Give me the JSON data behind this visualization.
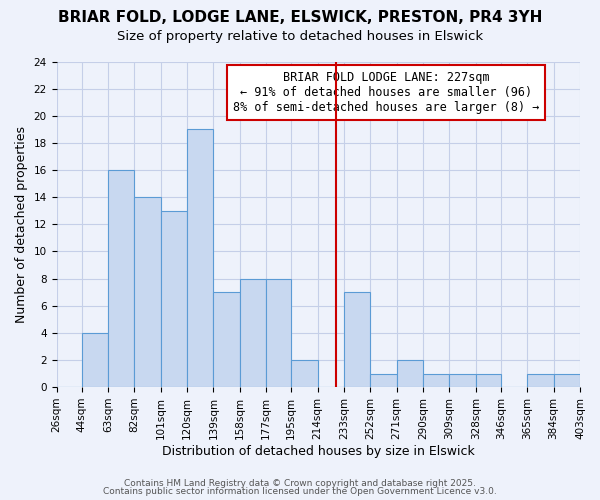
{
  "title": "BRIAR FOLD, LODGE LANE, ELSWICK, PRESTON, PR4 3YH",
  "subtitle": "Size of property relative to detached houses in Elswick",
  "xlabel": "Distribution of detached houses by size in Elswick",
  "ylabel": "Number of detached properties",
  "bin_edges": [
    26,
    44,
    63,
    82,
    101,
    120,
    139,
    158,
    177,
    195,
    214,
    233,
    252,
    271,
    290,
    309,
    328,
    346,
    365,
    384,
    403
  ],
  "counts": [
    0,
    4,
    16,
    14,
    13,
    19,
    7,
    8,
    8,
    2,
    0,
    7,
    1,
    2,
    1,
    1,
    1,
    0,
    1,
    1
  ],
  "bar_color": "#c8d8f0",
  "bar_edge_color": "#5b9bd5",
  "vline_x": 227,
  "vline_color": "#cc0000",
  "ylim": [
    0,
    24
  ],
  "yticks": [
    0,
    2,
    4,
    6,
    8,
    10,
    12,
    14,
    16,
    18,
    20,
    22,
    24
  ],
  "xtick_labels": [
    "26sqm",
    "44sqm",
    "63sqm",
    "82sqm",
    "101sqm",
    "120sqm",
    "139sqm",
    "158sqm",
    "177sqm",
    "195sqm",
    "214sqm",
    "233sqm",
    "252sqm",
    "271sqm",
    "290sqm",
    "309sqm",
    "328sqm",
    "346sqm",
    "365sqm",
    "384sqm",
    "403sqm"
  ],
  "annotation_title": "BRIAR FOLD LODGE LANE: 227sqm",
  "annotation_line1": "← 91% of detached houses are smaller (96)",
  "annotation_line2": "8% of semi-detached houses are larger (8) →",
  "footer1": "Contains HM Land Registry data © Crown copyright and database right 2025.",
  "footer2": "Contains public sector information licensed under the Open Government Licence v3.0.",
  "bg_color": "#eef2fb",
  "grid_color": "#c5cfe8",
  "title_fontsize": 11,
  "subtitle_fontsize": 9.5,
  "axis_label_fontsize": 9,
  "tick_fontsize": 7.5,
  "annotation_fontsize": 8.5,
  "footer_fontsize": 6.5
}
